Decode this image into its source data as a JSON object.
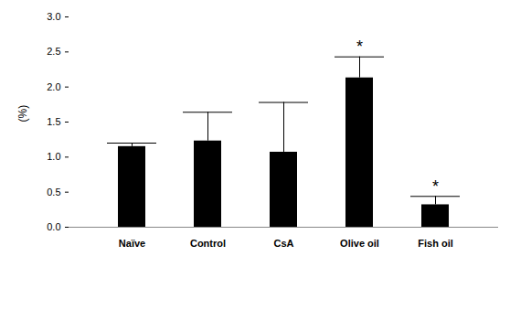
{
  "chart_data": {
    "type": "bar",
    "categories": [
      "Naïve",
      "Control",
      "CsA",
      "Olive oil",
      "Fish oil"
    ],
    "values": [
      1.15,
      1.23,
      1.07,
      2.13,
      0.32
    ],
    "error": [
      0.05,
      0.41,
      0.71,
      0.3,
      0.12
    ],
    "significance": [
      null,
      null,
      null,
      "*",
      "*"
    ],
    "y_label": "(%)",
    "color": "#000000",
    "ylim": [
      0,
      3
    ],
    "yticks": [
      0,
      0.5,
      1,
      1.5,
      2,
      2.5,
      3
    ],
    "grid": false
  }
}
